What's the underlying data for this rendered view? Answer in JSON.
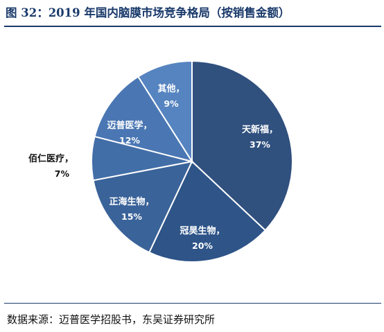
{
  "title": "图 32：2019 年国内脑膜市场竞争格局（按销售金额）",
  "source": "数据来源：迈普医学招股书，东吴证券研究所",
  "colors": {
    "navy": "#1a3a6b",
    "slices": [
      "#30507e",
      "#2e5488",
      "#3a6399",
      "#426ea8",
      "#4a77b3",
      "#5684c0"
    ],
    "slice_border": "#ffffff"
  },
  "chart_data": {
    "type": "pie",
    "title": "图 32：2019 年国内脑膜市场竞争格局（按销售金额）",
    "slices": [
      {
        "name": "天新福",
        "value": 37,
        "value_label": "37%"
      },
      {
        "name": "冠昊生物",
        "value": 20,
        "value_label": "20%"
      },
      {
        "name": "正海生物",
        "value": 15,
        "value_label": "15%"
      },
      {
        "name": "佰仁医疗",
        "value": 7,
        "value_label": "7%"
      },
      {
        "name": "迈普医学",
        "value": 12,
        "value_label": "12%"
      },
      {
        "name": "其他",
        "value": 9,
        "value_label": "9%"
      }
    ],
    "start_angle": "12 o'clock",
    "direction": "clockwise",
    "legend": "none",
    "label_suffix": "，"
  }
}
